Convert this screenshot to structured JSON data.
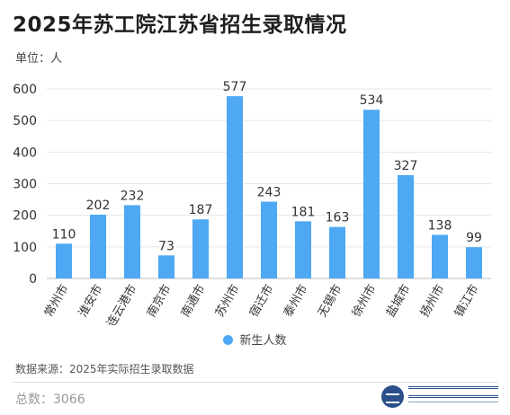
{
  "header": {
    "title": "2025年苏工院江苏省招生录取情况",
    "unit": "单位：人"
  },
  "legend": {
    "label": "新生人数",
    "color": "#4ea8f3"
  },
  "footer": {
    "source": "数据来源：2025年实际招生录取数据",
    "total": "总数：3066"
  },
  "logo": {
    "text": "苏州工业职业技术学院"
  },
  "chart_data": {
    "type": "bar",
    "categories": [
      "常州市",
      "淮安市",
      "连云港市",
      "南京市",
      "南通市",
      "苏州市",
      "宿迁市",
      "泰州市",
      "无锡市",
      "徐州市",
      "盐城市",
      "扬州市",
      "镇江市"
    ],
    "series": [
      {
        "name": "新生人数",
        "values": [
          110,
          202,
          232,
          73,
          187,
          577,
          243,
          181,
          163,
          534,
          327,
          138,
          99
        ]
      }
    ],
    "yticks": [
      0,
      100,
      200,
      300,
      400,
      500,
      600
    ],
    "ylim": [
      0,
      600
    ],
    "grid": true,
    "legend_position": "bottom",
    "bar_color": "#4ea8f3"
  }
}
